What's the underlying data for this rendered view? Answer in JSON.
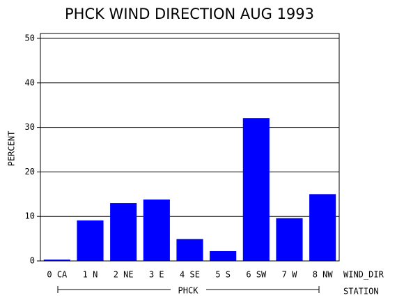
{
  "chart_data": {
    "type": "bar",
    "title": "PHCK WIND DIRECTION AUG 1993",
    "y_label": "PERCENT",
    "x_label": "WIND_DIR",
    "group_label": "PHCK",
    "group_axis_label": "STATION",
    "categories": [
      "0 CA",
      "1 N",
      "2 NE",
      "3 E",
      "4 SE",
      "5 S",
      "6 SW",
      "7 W",
      "8 NW"
    ],
    "values": [
      0.3,
      9.1,
      13.0,
      13.8,
      4.9,
      2.2,
      32.1,
      9.6,
      15.0
    ],
    "color": "#0000ff",
    "ylim": [
      0,
      50
    ],
    "yticks": [
      0,
      10,
      20,
      30,
      40,
      50
    ],
    "grid": true
  }
}
